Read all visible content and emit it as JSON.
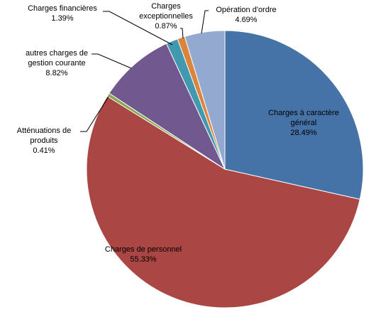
{
  "chart_data": {
    "type": "pie",
    "title": "",
    "unit": "%",
    "start_angle": "12 o'clock",
    "direction": "clockwise",
    "legend": "none",
    "slices": [
      {
        "name": "Charges à caractère général",
        "name_lines": [
          "Charges à caractère",
          "général"
        ],
        "value": 28.49,
        "value_label": "28.49%",
        "color": "#4572a7",
        "label_position": "inside"
      },
      {
        "name": "Charges de personnel",
        "name_lines": [
          "Charges de personnel"
        ],
        "value": 55.33,
        "value_label": "55.33%",
        "color": "#aa4643",
        "label_position": "inside"
      },
      {
        "name": "Atténuations de produits",
        "name_lines": [
          "Atténuations de",
          "produits"
        ],
        "value": 0.41,
        "value_label": "0.41%",
        "color": "#89a54e",
        "label_position": "outside"
      },
      {
        "name": "autres charges de gestion courante",
        "name_lines": [
          "autres charges de",
          "gestion courante"
        ],
        "value": 8.82,
        "value_label": "8.82%",
        "color": "#71588f",
        "label_position": "outside"
      },
      {
        "name": "Charges financières",
        "name_lines": [
          "Charges financières"
        ],
        "value": 1.39,
        "value_label": "1.39%",
        "color": "#4198af",
        "label_position": "outside"
      },
      {
        "name": "Charges exceptionnelles",
        "name_lines": [
          "Charges",
          "exceptionnelles"
        ],
        "value": 0.87,
        "value_label": "0.87%",
        "color": "#db843d",
        "label_position": "outside"
      },
      {
        "name": "Opération d'ordre",
        "name_lines": [
          "Opération d'ordre"
        ],
        "value": 4.69,
        "value_label": "4.69%",
        "color": "#93a9cf",
        "label_position": "outside"
      }
    ]
  }
}
